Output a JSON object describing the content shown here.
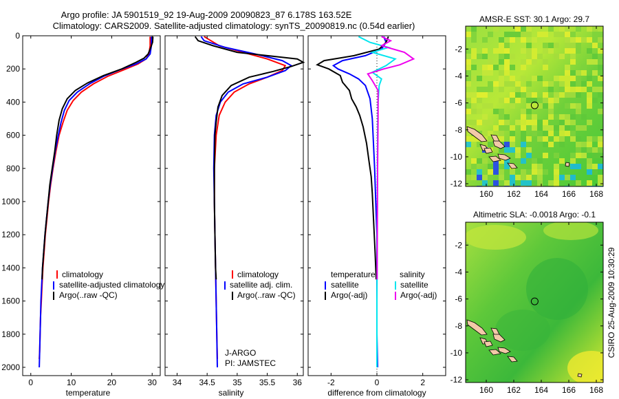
{
  "header": {
    "title_line1": "Argo profile: JA 5901519_92 19-Aug-2009 20090823_87 6.178S 163.52E",
    "title_line2": "Climatology: CARS2009. Satellite-adjusted climatology: synTS_20090819.nc (0.54d earlier)"
  },
  "side_label": "CSIRO 25-Aug-2009 10:30:29",
  "colors": {
    "climatology": "#ff0000",
    "satellite": "#0000ff",
    "argo": "#000000",
    "sal_sat": "#00e5ee",
    "sal_argo": "#ee00ee",
    "land": "#f2c9a8"
  },
  "chart_data": [
    {
      "type": "line",
      "name": "temperature-panel",
      "xlabel": "temperature",
      "ylabel": "",
      "xlim": [
        -2,
        32
      ],
      "ylim": [
        0,
        2050
      ],
      "y_reversed": true,
      "xticks": [
        0,
        10,
        20,
        30
      ],
      "yticks": [
        0,
        200,
        400,
        600,
        800,
        1000,
        1200,
        1400,
        1600,
        1800,
        2000
      ],
      "legend": {
        "placement": "lower-left",
        "entries": [
          "climatology",
          "satellite-adjusted climatology",
          "Argo(..raw -QC)"
        ]
      },
      "series": [
        {
          "name": "climatology",
          "color": "#ff0000",
          "points": [
            [
              29.5,
              5
            ],
            [
              29.5,
              60
            ],
            [
              29.2,
              110
            ],
            [
              28.5,
              140
            ],
            [
              26.5,
              170
            ],
            [
              23,
              205
            ],
            [
              19,
              245
            ],
            [
              15.5,
              290
            ],
            [
              12.5,
              340
            ],
            [
              10.5,
              390
            ],
            [
              9,
              450
            ],
            [
              8,
              520
            ],
            [
              7,
              600
            ],
            [
              6.2,
              700
            ],
            [
              5.5,
              800
            ],
            [
              4.9,
              900
            ],
            [
              4.4,
              1000
            ],
            [
              4,
              1100
            ],
            [
              3.6,
              1200
            ],
            [
              3.3,
              1300
            ],
            [
              3,
              1400
            ],
            [
              2.8,
              1500
            ],
            [
              2.6,
              1600
            ],
            [
              2.4,
              1700
            ],
            [
              2.3,
              1800
            ],
            [
              2.2,
              1900
            ],
            [
              2.1,
              1950
            ]
          ]
        },
        {
          "name": "satellite-adjusted climatology",
          "color": "#0000ff",
          "points": [
            [
              29.8,
              5
            ],
            [
              29.8,
              60
            ],
            [
              29.5,
              110
            ],
            [
              28.5,
              140
            ],
            [
              26,
              170
            ],
            [
              22,
              205
            ],
            [
              18,
              245
            ],
            [
              14.5,
              290
            ],
            [
              11.5,
              340
            ],
            [
              9.5,
              390
            ],
            [
              8.3,
              450
            ],
            [
              7.5,
              520
            ],
            [
              6.8,
              600
            ],
            [
              6,
              700
            ],
            [
              5.4,
              800
            ],
            [
              4.8,
              900
            ],
            [
              4.3,
              1000
            ],
            [
              3.9,
              1100
            ],
            [
              3.5,
              1200
            ],
            [
              3.2,
              1300
            ],
            [
              2.9,
              1400
            ],
            [
              2.7,
              1500
            ],
            [
              2.5,
              1600
            ],
            [
              2.4,
              1700
            ],
            [
              2.3,
              1800
            ],
            [
              2.2,
              1900
            ],
            [
              2.1,
              2000
            ]
          ]
        },
        {
          "name": "Argo(..raw -QC)",
          "color": "#000000",
          "points": [
            [
              30.2,
              5
            ],
            [
              30.1,
              40
            ],
            [
              29.5,
              80
            ],
            [
              29,
              110
            ],
            [
              28,
              135
            ],
            [
              26,
              160
            ],
            [
              22.5,
              200
            ],
            [
              18,
              240
            ],
            [
              14,
              285
            ],
            [
              11,
              330
            ],
            [
              9,
              380
            ],
            [
              7.8,
              440
            ],
            [
              7,
              510
            ],
            [
              6.4,
              600
            ],
            [
              5.9,
              700
            ],
            [
              5.3,
              800
            ],
            [
              4.7,
              900
            ],
            [
              4.3,
              1000
            ],
            [
              3.9,
              1100
            ],
            [
              3.5,
              1200
            ],
            [
              3.2,
              1300
            ],
            [
              2.9,
              1400
            ],
            [
              2.8,
              1470
            ]
          ]
        }
      ]
    },
    {
      "type": "line",
      "name": "salinity-panel",
      "xlabel": "salinity",
      "ylabel": "",
      "xlim": [
        33.8,
        36.1
      ],
      "ylim": [
        0,
        2050
      ],
      "y_reversed": true,
      "xticks": [
        34,
        34.5,
        35,
        35.5,
        36
      ],
      "legend": {
        "placement": "lower-left",
        "entries": [
          "climatology",
          "satellite adj. clim.",
          "Argo(..raw -QC)"
        ]
      },
      "annotation": [
        "J-ARGO",
        "PI: JAMSTEC"
      ],
      "series": [
        {
          "name": "climatology",
          "color": "#ff0000",
          "points": [
            [
              34.45,
              5
            ],
            [
              34.7,
              60
            ],
            [
              35.1,
              100
            ],
            [
              35.5,
              140
            ],
            [
              35.8,
              180
            ],
            [
              35.75,
              210
            ],
            [
              35.5,
              250
            ],
            [
              35.2,
              290
            ],
            [
              34.95,
              340
            ],
            [
              34.8,
              400
            ],
            [
              34.7,
              480
            ],
            [
              34.65,
              600
            ],
            [
              34.62,
              800
            ],
            [
              34.62,
              1000
            ],
            [
              34.63,
              1200
            ],
            [
              34.64,
              1400
            ],
            [
              34.65,
              1600
            ],
            [
              34.66,
              1800
            ],
            [
              34.67,
              1950
            ]
          ]
        },
        {
          "name": "satellite adj. clim.",
          "color": "#0000ff",
          "points": [
            [
              34.4,
              5
            ],
            [
              34.45,
              30
            ],
            [
              34.8,
              70
            ],
            [
              35.3,
              110
            ],
            [
              35.75,
              150
            ],
            [
              35.9,
              180
            ],
            [
              35.8,
              210
            ],
            [
              35.5,
              250
            ],
            [
              35.1,
              290
            ],
            [
              34.85,
              340
            ],
            [
              34.72,
              400
            ],
            [
              34.65,
              480
            ],
            [
              34.62,
              600
            ],
            [
              34.61,
              800
            ],
            [
              34.62,
              1000
            ],
            [
              34.63,
              1200
            ],
            [
              34.64,
              1400
            ],
            [
              34.65,
              1600
            ],
            [
              34.66,
              1800
            ],
            [
              34.67,
              2000
            ]
          ]
        },
        {
          "name": "Argo(..raw -QC)",
          "color": "#000000",
          "points": [
            [
              34.3,
              5
            ],
            [
              34.35,
              30
            ],
            [
              34.6,
              60
            ],
            [
              35,
              100
            ],
            [
              35.5,
              120
            ],
            [
              36,
              140
            ],
            [
              36.1,
              160
            ],
            [
              35.9,
              185
            ],
            [
              35.6,
              215
            ],
            [
              35.2,
              250
            ],
            [
              34.9,
              300
            ],
            [
              34.75,
              360
            ],
            [
              34.68,
              430
            ],
            [
              34.65,
              520
            ],
            [
              34.63,
              600
            ],
            [
              34.62,
              800
            ],
            [
              34.62,
              1000
            ],
            [
              34.63,
              1200
            ],
            [
              34.64,
              1400
            ],
            [
              34.65,
              1470
            ]
          ]
        }
      ]
    },
    {
      "type": "line",
      "name": "difference-panel",
      "xlabel": "difference from climatology",
      "ylabel": "",
      "xlim": [
        -3,
        3
      ],
      "ylim": [
        0,
        2050
      ],
      "y_reversed": true,
      "xticks": [
        -2,
        0,
        2
      ],
      "legend": {
        "placement": "lower-left",
        "entries": [
          "temperature",
          "satellite",
          "Argo(-adj)",
          "salinity",
          "satellite",
          "Argo(-adj)"
        ]
      },
      "series": [
        {
          "name": "satellite",
          "quantity": "temperature",
          "color": "#0000ff",
          "points": [
            [
              0.3,
              5
            ],
            [
              0.4,
              40
            ],
            [
              0.2,
              80
            ],
            [
              -0.5,
              120
            ],
            [
              -1.5,
              150
            ],
            [
              -1.9,
              180
            ],
            [
              -1.7,
              200
            ],
            [
              -1.2,
              230
            ],
            [
              -0.8,
              260
            ],
            [
              -0.5,
              300
            ],
            [
              -0.3,
              380
            ],
            [
              -0.2,
              500
            ],
            [
              -0.15,
              650
            ],
            [
              -0.1,
              800
            ],
            [
              -0.05,
              1000
            ],
            [
              0,
              1200
            ],
            [
              0,
              1400
            ],
            [
              0,
              1600
            ],
            [
              0,
              1800
            ],
            [
              0.03,
              2000
            ]
          ]
        },
        {
          "name": "Argo(-adj)",
          "quantity": "temperature",
          "color": "#000000",
          "points": [
            [
              0.5,
              5
            ],
            [
              0.4,
              40
            ],
            [
              0.1,
              80
            ],
            [
              -1,
              120
            ],
            [
              -2.3,
              150
            ],
            [
              -2.6,
              175
            ],
            [
              -2.1,
              200
            ],
            [
              -1.6,
              240
            ],
            [
              -1.5,
              280
            ],
            [
              -1.2,
              330
            ],
            [
              -1.1,
              380
            ],
            [
              -0.9,
              430
            ],
            [
              -0.75,
              480
            ],
            [
              -0.6,
              550
            ],
            [
              -0.45,
              650
            ],
            [
              -0.35,
              750
            ],
            [
              -0.25,
              850
            ],
            [
              -0.2,
              950
            ],
            [
              -0.15,
              1100
            ],
            [
              -0.08,
              1300
            ],
            [
              -0.03,
              1470
            ]
          ]
        },
        {
          "name": "satellite",
          "quantity": "salinity",
          "color": "#00e5ee",
          "points": [
            [
              -0.8,
              5
            ],
            [
              -0.3,
              40
            ],
            [
              0.5,
              70
            ],
            [
              -0.2,
              100
            ],
            [
              0.8,
              140
            ],
            [
              0.4,
              180
            ],
            [
              -0.2,
              220
            ],
            [
              0.2,
              260
            ],
            [
              0.1,
              300
            ],
            [
              0.05,
              400
            ],
            [
              0.03,
              600
            ],
            [
              0.02,
              800
            ],
            [
              0.02,
              1000
            ],
            [
              0.01,
              1200
            ],
            [
              0.01,
              1400
            ],
            [
              0,
              1600
            ],
            [
              0,
              1800
            ],
            [
              0,
              2000
            ]
          ]
        },
        {
          "name": "Argo(-adj)",
          "quantity": "salinity",
          "color": "#ee00ee",
          "points": [
            [
              0.2,
              5
            ],
            [
              0.6,
              30
            ],
            [
              0.2,
              60
            ],
            [
              1.2,
              100
            ],
            [
              1.6,
              140
            ],
            [
              1,
              175
            ],
            [
              0.3,
              200
            ],
            [
              -0.4,
              230
            ],
            [
              -0.2,
              270
            ],
            [
              0.05,
              330
            ],
            [
              0.05,
              500
            ],
            [
              0.03,
              800
            ],
            [
              0.02,
              1100
            ],
            [
              0.01,
              1470
            ]
          ]
        }
      ]
    },
    {
      "type": "heatmap",
      "name": "sst-map",
      "title": "AMSR-E SST: 30.1 Argo: 29.7",
      "xlim": [
        158.5,
        168.5
      ],
      "ylim": [
        -12.2,
        -0.3
      ],
      "xticks": [
        160,
        162,
        164,
        166,
        168
      ],
      "yticks": [
        -2,
        -4,
        -6,
        -8,
        -10,
        -12
      ],
      "marker": {
        "lon": 163.52,
        "lat": -6.178
      }
    },
    {
      "type": "heatmap",
      "name": "sla-map",
      "title": "Altimetric SLA: -0.0018 Argo: -0.1",
      "xlim": [
        158.5,
        168.5
      ],
      "ylim": [
        -12.2,
        -0.3
      ],
      "xticks": [
        160,
        162,
        164,
        166,
        168
      ],
      "yticks": [
        -2,
        -4,
        -6,
        -8,
        -10,
        -12
      ],
      "marker": {
        "lon": 163.52,
        "lat": -6.178
      }
    }
  ]
}
